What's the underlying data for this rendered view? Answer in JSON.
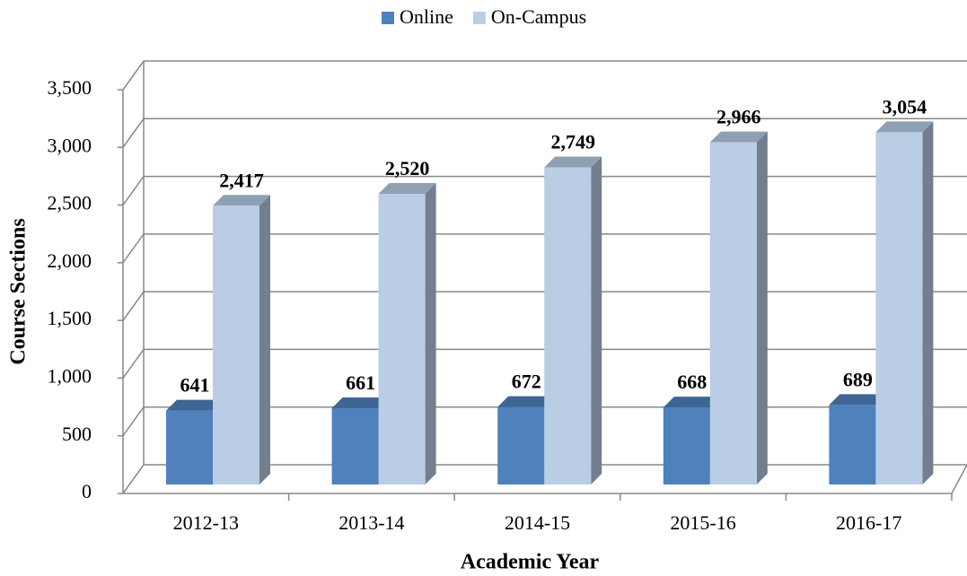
{
  "chart_data": {
    "type": "bar3d",
    "x_label": "Academic Year",
    "y_label": "Course Sections",
    "categories": [
      "2012-13",
      "2013-14",
      "2014-15",
      "2015-16",
      "2016-17"
    ],
    "series": [
      {
        "name": "Online",
        "color": "#4f81bd",
        "values": [
          641,
          661,
          672,
          668,
          689
        ],
        "value_labels": [
          "641",
          "661",
          "672",
          "668",
          "689"
        ]
      },
      {
        "name": "On-Campus",
        "color": "#b9cde5",
        "values": [
          2417,
          2520,
          2749,
          2966,
          3054
        ],
        "value_labels": [
          "2,417",
          "2,520",
          "2,749",
          "2,966",
          "3,054"
        ]
      }
    ],
    "ylim": [
      0,
      3500
    ],
    "yticks": [
      0,
      500,
      {
        "value": 1000,
        "label": "1,000"
      },
      {
        "value": 1500,
        "label": "1,500"
      },
      {
        "value": 2000,
        "label": "2,000"
      },
      {
        "value": 2500,
        "label": "2,500"
      },
      {
        "value": 3000,
        "label": "3,000"
      },
      {
        "value": 3500,
        "label": "3,500"
      }
    ],
    "grid": true,
    "legend": "top"
  }
}
